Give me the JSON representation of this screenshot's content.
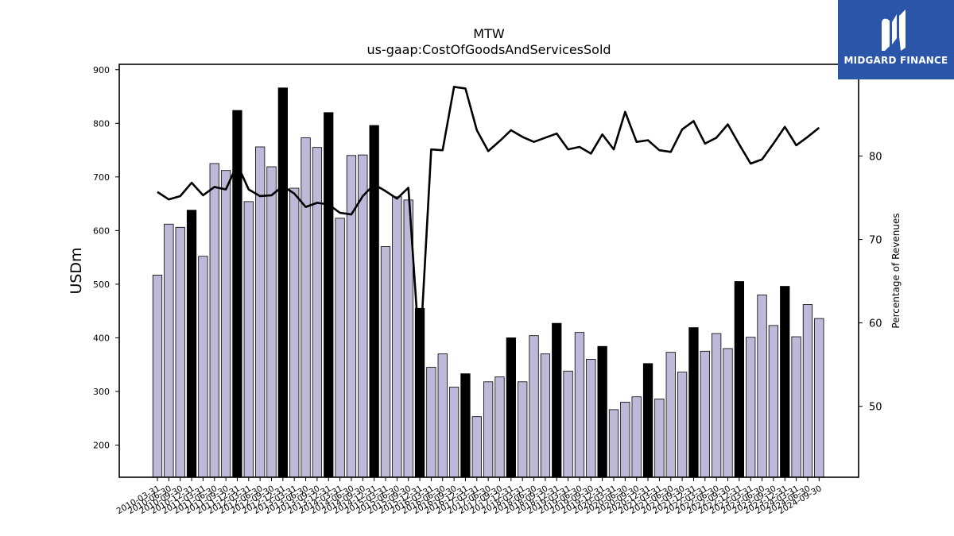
{
  "brand": {
    "name": "MIDGARD FINANCE",
    "bg": "#2a55a8",
    "icon": "midgard-m-logo-icon"
  },
  "chart_data": {
    "type": "bar",
    "title": "MTW",
    "subtitle": "us-gaap:CostOfGoodsAndServicesSold",
    "ylabel": "USDm",
    "y2label": "Percentage of Revenues",
    "ylim": [
      140,
      910
    ],
    "y2lim": [
      41.5,
      91
    ],
    "yticks": [
      200,
      300,
      400,
      500,
      600,
      700,
      800,
      900
    ],
    "y2ticks": [
      50,
      60,
      70,
      80
    ],
    "colors": {
      "quarter": "#bdb9d9",
      "annual": "#000000",
      "line": "#000000"
    },
    "categories": [
      "2010-03-31",
      "2010-06-30",
      "2010-09-30",
      "2010-12-31",
      "2011-03-31",
      "2011-06-30",
      "2011-09-30",
      "2011-12-31",
      "2012-03-31",
      "2012-06-30",
      "2012-09-30",
      "2012-12-31",
      "2013-03-31",
      "2013-06-30",
      "2013-09-30",
      "2013-12-31",
      "2014-03-31",
      "2014-06-30",
      "2014-09-30",
      "2014-12-31",
      "2015-03-31",
      "2015-06-30",
      "2015-09-30",
      "2015-12-31",
      "2016-03-31",
      "2016-06-30",
      "2016-09-30",
      "2016-12-31",
      "2017-03-31",
      "2017-06-30",
      "2017-09-30",
      "2017-12-31",
      "2018-03-31",
      "2018-06-30",
      "2018-09-30",
      "2018-12-31",
      "2019-03-31",
      "2019-06-30",
      "2019-09-30",
      "2019-12-31",
      "2020-03-31",
      "2020-06-30",
      "2020-09-30",
      "2020-12-31",
      "2021-03-31",
      "2021-06-30",
      "2021-09-30",
      "2021-12-31",
      "2022-03-31",
      "2022-06-30",
      "2022-09-30",
      "2022-12-31",
      "2023-03-31",
      "2023-06-30",
      "2023-09-30",
      "2023-12-31",
      "2024-03-31",
      "2024-06-30",
      "2024-09-30"
    ],
    "values": [
      517,
      612,
      606,
      638,
      552,
      725,
      712,
      824,
      654,
      756,
      719,
      866,
      679,
      773,
      755,
      820,
      623,
      740,
      741,
      796,
      570,
      663,
      657,
      455,
      345,
      370,
      308,
      333,
      253,
      318,
      327,
      400,
      318,
      404,
      370,
      427,
      338,
      410,
      360,
      384,
      266,
      280,
      290,
      352,
      286,
      373,
      336,
      419,
      375,
      408,
      380,
      505,
      401,
      480,
      423,
      496,
      402,
      462,
      436
    ],
    "annual": [
      false,
      false,
      false,
      true,
      false,
      false,
      false,
      true,
      false,
      false,
      false,
      true,
      false,
      false,
      false,
      true,
      false,
      false,
      false,
      true,
      false,
      false,
      false,
      true,
      false,
      false,
      false,
      true,
      false,
      false,
      false,
      true,
      false,
      false,
      false,
      true,
      false,
      false,
      false,
      true,
      false,
      false,
      false,
      true,
      false,
      false,
      false,
      true,
      false,
      false,
      false,
      true,
      false,
      false,
      false,
      true,
      false,
      false,
      false
    ],
    "pct_of_revenues": [
      75.7,
      74.8,
      75.2,
      76.8,
      75.3,
      76.3,
      76.0,
      79.0,
      76.0,
      75.2,
      75.3,
      76.4,
      75.5,
      73.9,
      74.4,
      74.2,
      73.2,
      73.0,
      75.2,
      76.6,
      75.8,
      74.9,
      76.2,
      56.0,
      80.8,
      80.7,
      88.3,
      88.1,
      83.1,
      80.6,
      81.8,
      83.1,
      82.3,
      81.7,
      82.2,
      82.7,
      80.8,
      81.1,
      80.3,
      82.6,
      80.8,
      85.3,
      81.7,
      81.9,
      80.7,
      80.5,
      83.2,
      84.2,
      81.5,
      82.2,
      83.8,
      81.4,
      79.1,
      79.6,
      81.5,
      83.5,
      81.3,
      82.3,
      83.4
    ]
  }
}
